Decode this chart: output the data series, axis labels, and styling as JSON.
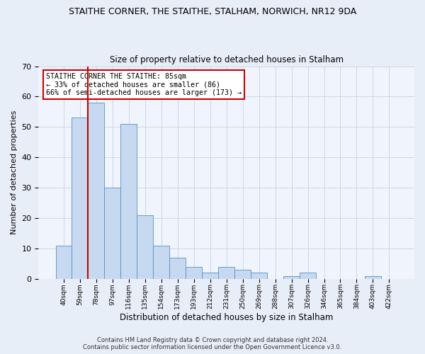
{
  "title1": "STAITHE CORNER, THE STAITHE, STALHAM, NORWICH, NR12 9DA",
  "title2": "Size of property relative to detached houses in Stalham",
  "xlabel": "Distribution of detached houses by size in Stalham",
  "ylabel": "Number of detached properties",
  "categories": [
    "40sqm",
    "59sqm",
    "78sqm",
    "97sqm",
    "116sqm",
    "135sqm",
    "154sqm",
    "173sqm",
    "193sqm",
    "212sqm",
    "231sqm",
    "250sqm",
    "269sqm",
    "288sqm",
    "307sqm",
    "326sqm",
    "346sqm",
    "365sqm",
    "384sqm",
    "403sqm",
    "422sqm"
  ],
  "values": [
    11,
    53,
    58,
    30,
    51,
    21,
    11,
    7,
    4,
    2,
    4,
    3,
    2,
    0,
    1,
    2,
    0,
    0,
    0,
    1,
    0
  ],
  "bar_color": "#c6d9f0",
  "bar_edge_color": "#5a8fc3",
  "vline_color": "#cc0000",
  "vline_index": 2,
  "annotation_text": "STAITHE CORNER THE STAITHE: 85sqm\n← 33% of detached houses are smaller (86)\n66% of semi-detached houses are larger (173) →",
  "annotation_box_color": "#ffffff",
  "annotation_box_edge": "#cc0000",
  "ylim": [
    0,
    70
  ],
  "yticks": [
    0,
    10,
    20,
    30,
    40,
    50,
    60,
    70
  ],
  "footer1": "Contains HM Land Registry data © Crown copyright and database right 2024.",
  "footer2": "Contains public sector information licensed under the Open Government Licence v3.0.",
  "bg_color": "#e8eef8",
  "plot_bg_color": "#f0f4fc"
}
